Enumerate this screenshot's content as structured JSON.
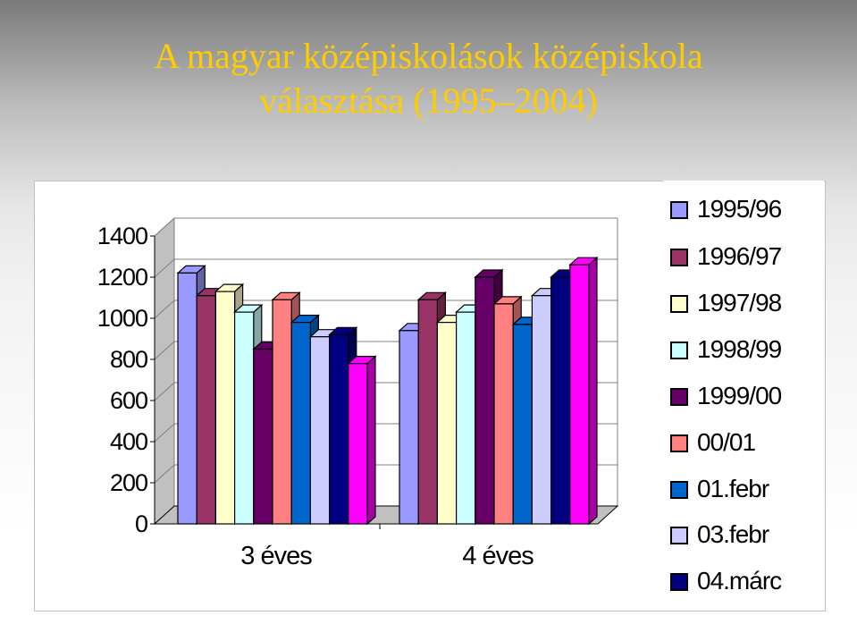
{
  "title": {
    "line1": "A magyar középiskolások középiskola",
    "line2": "választása (1995–2004)"
  },
  "colors": {
    "title": "#ffcc00"
  },
  "chart_data": {
    "type": "bar",
    "style": "3d-clustered",
    "categories": [
      "3 éves",
      "4 éves"
    ],
    "ylim": [
      0,
      1400
    ],
    "yticks": [
      0,
      200,
      400,
      600,
      800,
      1000,
      1200,
      1400
    ],
    "grid": true,
    "legend_position": "right",
    "series": [
      {
        "name": "1995/96",
        "color": "#9999ff",
        "values": [
          1220,
          940
        ]
      },
      {
        "name": "1996/97",
        "color": "#993366",
        "values": [
          1110,
          1090
        ]
      },
      {
        "name": "1997/98",
        "color": "#ffffcc",
        "values": [
          1130,
          980
        ]
      },
      {
        "name": "1998/99",
        "color": "#ccffff",
        "values": [
          1030,
          1030
        ]
      },
      {
        "name": "1999/00",
        "color": "#660066",
        "values": [
          850,
          1200
        ]
      },
      {
        "name": "00/01",
        "color": "#ff8080",
        "values": [
          1090,
          1070
        ]
      },
      {
        "name": "01.febr",
        "color": "#0066cc",
        "values": [
          980,
          970
        ]
      },
      {
        "name": "03.febr",
        "color": "#ccccff",
        "values": [
          910,
          1110
        ]
      },
      {
        "name": "04.márc",
        "color": "#000080",
        "values": [
          920,
          1200
        ]
      },
      {
        "name": "",
        "color": "#ff00ff",
        "values": [
          780,
          1260
        ]
      }
    ]
  }
}
